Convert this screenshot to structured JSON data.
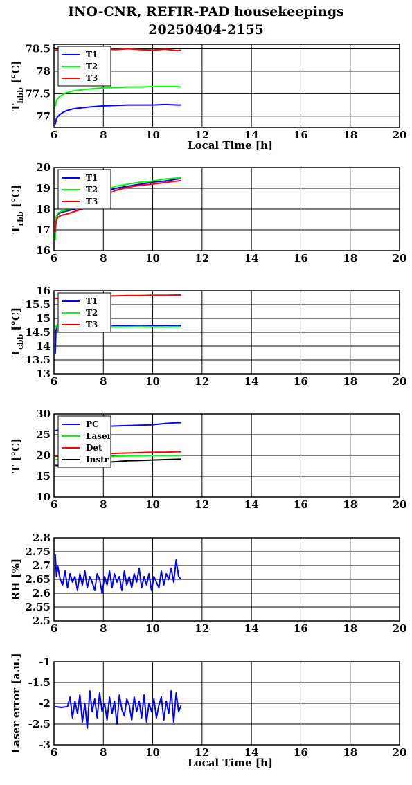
{
  "title": {
    "line1": "INO-CNR, REFIR-PAD housekeepings",
    "line2": "20250404-2155"
  },
  "chart_data": [
    {
      "type": "line",
      "ylabel_main": "T",
      "ylabel_sub": "hbb",
      "ylabel_unit": " [°C]",
      "xlabel": "Local Time [h]",
      "xlim": [
        6,
        20
      ],
      "ylim": [
        76.75,
        78.6
      ],
      "xticks": [
        6,
        8,
        10,
        12,
        14,
        16,
        18,
        20
      ],
      "yticks": [
        77,
        77.5,
        78,
        78.5
      ],
      "grid": true,
      "legend_position": "top-left",
      "series": [
        {
          "name": "T1",
          "color": "#0000ff",
          "x": [
            6.05,
            6.1,
            6.2,
            6.35,
            6.5,
            6.75,
            7.0,
            7.5,
            8.0,
            8.5,
            9.0,
            9.5,
            10.0,
            10.5,
            11.0,
            11.15
          ],
          "y": [
            76.82,
            76.95,
            77.02,
            77.08,
            77.12,
            77.16,
            77.18,
            77.21,
            77.23,
            77.24,
            77.25,
            77.25,
            77.25,
            77.26,
            77.25,
            77.25
          ]
        },
        {
          "name": "T2",
          "color": "#00ff00",
          "x": [
            6.05,
            6.1,
            6.2,
            6.35,
            6.5,
            6.75,
            7.0,
            7.5,
            8.0,
            8.5,
            9.0,
            9.5,
            10.0,
            10.5,
            11.0,
            11.15
          ],
          "y": [
            77.22,
            77.35,
            77.42,
            77.48,
            77.52,
            77.56,
            77.58,
            77.61,
            77.63,
            77.64,
            77.65,
            77.65,
            77.66,
            77.66,
            77.66,
            77.65
          ]
        },
        {
          "name": "T3",
          "color": "#ff0000",
          "x": [
            6.05,
            6.5,
            7.0,
            7.5,
            8.0,
            8.5,
            9.0,
            9.5,
            10.0,
            10.5,
            11.0,
            11.15
          ],
          "y": [
            78.47,
            78.49,
            78.48,
            78.5,
            78.49,
            78.48,
            78.5,
            78.48,
            78.47,
            78.49,
            78.46,
            78.47
          ]
        }
      ]
    },
    {
      "type": "line",
      "ylabel_main": "T",
      "ylabel_sub": "rbb",
      "ylabel_unit": " [°C]",
      "xlabel": "",
      "xlim": [
        6,
        20
      ],
      "ylim": [
        16,
        20
      ],
      "xticks": [
        6,
        8,
        10,
        12,
        14,
        16,
        18,
        20
      ],
      "yticks": [
        16,
        17,
        18,
        19,
        20
      ],
      "grid": true,
      "legend_position": "top-left",
      "series": [
        {
          "name": "T1",
          "color": "#0000ff",
          "x": [
            6.05,
            6.08,
            6.15,
            6.3,
            6.5,
            7.0,
            7.5,
            8.0,
            8.5,
            9.0,
            9.5,
            10.0,
            10.5,
            11.0,
            11.15
          ],
          "y": [
            16.6,
            17.5,
            17.75,
            17.85,
            17.9,
            18.05,
            18.25,
            18.8,
            19.0,
            19.1,
            19.2,
            19.3,
            19.35,
            19.45,
            19.48
          ]
        },
        {
          "name": "T2",
          "color": "#00ff00",
          "x": [
            6.05,
            6.08,
            6.15,
            6.3,
            6.5,
            7.0,
            7.5,
            8.0,
            8.5,
            9.0,
            9.5,
            10.0,
            10.5,
            11.0,
            11.15
          ],
          "y": [
            16.5,
            17.6,
            17.8,
            17.9,
            17.95,
            18.1,
            18.3,
            18.9,
            19.1,
            19.2,
            19.3,
            19.35,
            19.45,
            19.5,
            19.52
          ]
        },
        {
          "name": "T3",
          "color": "#ff0000",
          "x": [
            6.05,
            6.08,
            6.15,
            6.3,
            6.5,
            7.0,
            7.5,
            8.0,
            8.5,
            9.0,
            9.5,
            10.0,
            10.5,
            11.0,
            11.15
          ],
          "y": [
            16.9,
            17.4,
            17.6,
            17.7,
            17.75,
            17.95,
            18.15,
            18.65,
            18.9,
            19.05,
            19.15,
            19.2,
            19.28,
            19.35,
            19.38
          ]
        }
      ]
    },
    {
      "type": "line",
      "ylabel_main": "T",
      "ylabel_sub": "cbb",
      "ylabel_unit": " [°C]",
      "xlabel": "",
      "xlim": [
        6,
        20
      ],
      "ylim": [
        13,
        16
      ],
      "xticks": [
        6,
        8,
        10,
        12,
        14,
        16,
        18,
        20
      ],
      "yticks": [
        13,
        13.5,
        14,
        14.5,
        15,
        15.5,
        16
      ],
      "grid": true,
      "legend_position": "top-left",
      "series": [
        {
          "name": "T1",
          "color": "#0000ff",
          "x": [
            6.05,
            6.08,
            6.12,
            6.2,
            6.5,
            7.0,
            7.5,
            8.0,
            8.5,
            9.0,
            9.5,
            10.0,
            10.5,
            11.0,
            11.15
          ],
          "y": [
            13.7,
            14.6,
            14.75,
            14.78,
            14.76,
            14.75,
            14.74,
            14.74,
            14.75,
            14.74,
            14.73,
            14.74,
            14.75,
            14.74,
            14.75
          ]
        },
        {
          "name": "T2",
          "color": "#00ff00",
          "x": [
            6.05,
            6.08,
            6.12,
            6.2,
            6.5,
            7.0,
            7.5,
            8.0,
            8.5,
            9.0,
            9.5,
            10.0,
            10.5,
            11.0,
            11.15
          ],
          "y": [
            14.6,
            14.72,
            14.75,
            14.74,
            14.72,
            14.7,
            14.71,
            14.7,
            14.69,
            14.7,
            14.71,
            14.7,
            14.69,
            14.7,
            14.7
          ]
        },
        {
          "name": "T3",
          "color": "#ff0000",
          "x": [
            6.05,
            6.5,
            7.0,
            7.5,
            8.0,
            8.5,
            9.0,
            9.5,
            10.0,
            10.5,
            11.0,
            11.15
          ],
          "y": [
            15.72,
            15.76,
            15.78,
            15.8,
            15.81,
            15.82,
            15.83,
            15.83,
            15.84,
            15.84,
            15.85,
            15.85
          ]
        }
      ]
    },
    {
      "type": "line",
      "ylabel_main": "T [°C]",
      "ylabel_sub": "",
      "ylabel_unit": "",
      "xlabel": "",
      "xlim": [
        6,
        20
      ],
      "ylim": [
        10,
        30
      ],
      "xticks": [
        6,
        8,
        10,
        12,
        14,
        16,
        18,
        20
      ],
      "yticks": [
        10,
        15,
        20,
        25,
        30
      ],
      "grid": true,
      "legend_position": "top-left",
      "series": [
        {
          "name": "PC",
          "color": "#0000ff",
          "x": [
            6.05,
            6.5,
            7.0,
            7.5,
            8.0,
            8.5,
            9.0,
            9.5,
            10.0,
            10.5,
            11.0,
            11.15
          ],
          "y": [
            26.0,
            26.4,
            26.7,
            26.9,
            27.0,
            27.1,
            27.2,
            27.3,
            27.4,
            27.7,
            27.9,
            27.9
          ]
        },
        {
          "name": "Laser",
          "color": "#00ff00",
          "x": [
            6.05,
            6.5,
            7.0,
            7.5,
            8.0,
            8.5,
            9.0,
            9.5,
            10.0,
            10.5,
            11.0,
            11.15
          ],
          "y": [
            19.0,
            19.3,
            19.5,
            19.6,
            19.7,
            19.8,
            19.9,
            19.9,
            20.0,
            20.0,
            20.0,
            20.0
          ]
        },
        {
          "name": "Det",
          "color": "#ff0000",
          "x": [
            6.05,
            6.5,
            7.0,
            7.5,
            8.0,
            8.5,
            9.0,
            9.5,
            10.0,
            10.5,
            11.0,
            11.15
          ],
          "y": [
            19.8,
            20.0,
            20.2,
            20.3,
            20.4,
            20.5,
            20.6,
            20.7,
            20.8,
            20.8,
            20.9,
            20.9
          ]
        },
        {
          "name": "Instr",
          "color": "#000000",
          "x": [
            6.05,
            6.5,
            7.0,
            7.5,
            8.0,
            8.5,
            9.0,
            9.5,
            10.0,
            10.5,
            11.0,
            11.15
          ],
          "y": [
            17.6,
            17.5,
            17.8,
            18.0,
            18.3,
            18.5,
            18.7,
            18.8,
            18.9,
            19.0,
            19.1,
            19.1
          ]
        }
      ]
    },
    {
      "type": "line",
      "ylabel_main": "RH [%]",
      "ylabel_sub": "",
      "ylabel_unit": "",
      "xlabel": "",
      "xlim": [
        6,
        20
      ],
      "ylim": [
        2.5,
        2.8
      ],
      "xticks": [
        6,
        8,
        10,
        12,
        14,
        16,
        18,
        20
      ],
      "yticks": [
        2.5,
        2.55,
        2.6,
        2.65,
        2.7,
        2.75,
        2.8
      ],
      "grid": true,
      "legend_position": "none",
      "series": [
        {
          "name": "",
          "color": "#0000ff",
          "x": [
            6.05,
            6.1,
            6.15,
            6.25,
            6.35,
            6.45,
            6.55,
            6.65,
            6.75,
            6.85,
            6.95,
            7.05,
            7.15,
            7.25,
            7.35,
            7.45,
            7.55,
            7.65,
            7.75,
            7.85,
            7.95,
            8.05,
            8.15,
            8.25,
            8.35,
            8.45,
            8.55,
            8.65,
            8.75,
            8.85,
            8.95,
            9.05,
            9.15,
            9.25,
            9.35,
            9.45,
            9.55,
            9.65,
            9.75,
            9.85,
            9.95,
            10.05,
            10.15,
            10.25,
            10.35,
            10.45,
            10.55,
            10.65,
            10.75,
            10.85,
            10.95,
            11.05,
            11.15
          ],
          "y": [
            2.74,
            2.66,
            2.7,
            2.65,
            2.63,
            2.68,
            2.62,
            2.67,
            2.64,
            2.66,
            2.61,
            2.67,
            2.63,
            2.68,
            2.62,
            2.66,
            2.64,
            2.61,
            2.67,
            2.65,
            2.6,
            2.66,
            2.63,
            2.68,
            2.62,
            2.67,
            2.64,
            2.66,
            2.61,
            2.68,
            2.63,
            2.66,
            2.62,
            2.67,
            2.64,
            2.69,
            2.62,
            2.66,
            2.63,
            2.67,
            2.61,
            2.66,
            2.64,
            2.62,
            2.68,
            2.63,
            2.67,
            2.65,
            2.69,
            2.64,
            2.72,
            2.66,
            2.65
          ]
        }
      ]
    },
    {
      "type": "line",
      "ylabel_main": "Laser error [a.u.]",
      "ylabel_sub": "",
      "ylabel_unit": "",
      "xlabel": "Local Time [h]",
      "xlim": [
        6,
        20
      ],
      "ylim": [
        -3,
        -1
      ],
      "xticks": [
        6,
        8,
        10,
        12,
        14,
        16,
        18,
        20
      ],
      "yticks": [
        -3,
        -2.5,
        -2,
        -1.5,
        -1
      ],
      "grid": true,
      "legend_position": "none",
      "series": [
        {
          "name": "",
          "color": "#0000ff",
          "x": [
            6.05,
            6.3,
            6.55,
            6.65,
            6.75,
            6.85,
            6.95,
            7.05,
            7.15,
            7.25,
            7.35,
            7.45,
            7.55,
            7.65,
            7.75,
            7.85,
            7.95,
            8.05,
            8.15,
            8.25,
            8.35,
            8.45,
            8.55,
            8.65,
            8.75,
            8.85,
            8.95,
            9.05,
            9.15,
            9.25,
            9.35,
            9.45,
            9.55,
            9.65,
            9.75,
            9.85,
            9.95,
            10.05,
            10.15,
            10.25,
            10.35,
            10.45,
            10.55,
            10.65,
            10.75,
            10.85,
            10.95,
            11.05,
            11.15
          ],
          "y": [
            -2.08,
            -2.1,
            -2.08,
            -1.85,
            -2.35,
            -1.95,
            -2.25,
            -1.8,
            -2.45,
            -2.0,
            -2.6,
            -1.7,
            -2.2,
            -1.9,
            -2.35,
            -1.75,
            -2.2,
            -2.0,
            -2.4,
            -1.85,
            -2.25,
            -1.95,
            -2.5,
            -1.8,
            -2.15,
            -2.3,
            -1.9,
            -2.05,
            -2.4,
            -1.85,
            -2.2,
            -1.95,
            -2.35,
            -1.8,
            -2.45,
            -2.0,
            -2.2,
            -1.9,
            -2.35,
            -2.05,
            -1.85,
            -2.4,
            -1.95,
            -2.25,
            -1.7,
            -2.45,
            -1.75,
            -2.2,
            -2.05
          ]
        }
      ]
    }
  ]
}
